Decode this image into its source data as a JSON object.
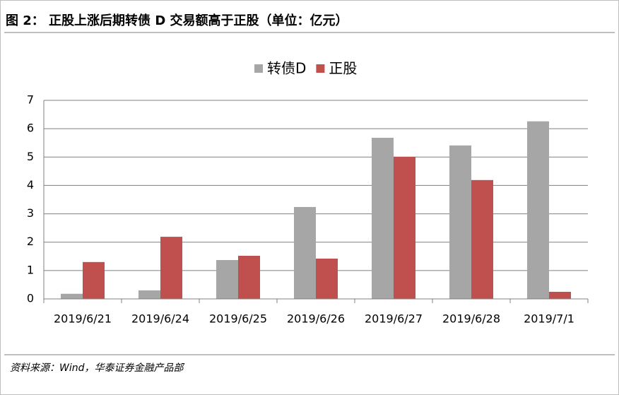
{
  "chart_data": {
    "type": "bar",
    "title": "图 2： 正股上涨后期转债 D 交易额高于正股（单位：亿元）",
    "source": "资料来源：Wind，华泰证券金融产品部",
    "categories": [
      "2019/6/21",
      "2019/6/24",
      "2019/6/25",
      "2019/6/26",
      "2019/6/27",
      "2019/6/28",
      "2019/7/1"
    ],
    "series": [
      {
        "name": "转债D",
        "color": "#a6a6a6",
        "values": [
          0.18,
          0.3,
          1.37,
          3.24,
          5.68,
          5.41,
          6.26
        ]
      },
      {
        "name": "正股",
        "color": "#c0504d",
        "values": [
          1.3,
          2.19,
          1.52,
          1.42,
          5.01,
          4.19,
          0.25
        ]
      }
    ],
    "ylim": [
      0,
      7
    ],
    "yticks": [
      0,
      1,
      2,
      3,
      4,
      5,
      6,
      7
    ],
    "grid": true,
    "legend": "top"
  }
}
